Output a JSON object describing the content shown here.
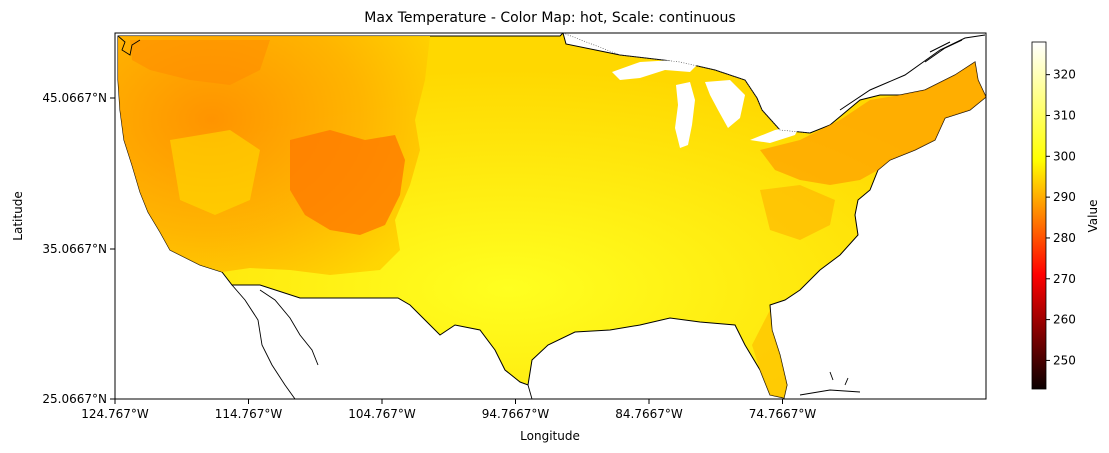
{
  "figure": {
    "title": "Max Temperature - Color Map: hot, Scale: continuous",
    "xlabel": "Longitude",
    "ylabel": "Latitude",
    "colorbar_label": "Value",
    "colormap": "hot"
  },
  "chart_data": {
    "type": "heatmap",
    "title": "Max Temperature - Color Map: hot, Scale: continuous",
    "xlabel": "Longitude",
    "ylabel": "Latitude",
    "x_ticks": [
      "124.767°W",
      "114.767°W",
      "104.767°W",
      "94.7667°W",
      "84.7667°W",
      "74.7667°W"
    ],
    "y_ticks": [
      "45.0667°N",
      "35.0667°N",
      "25.0667°N"
    ],
    "colorbar": {
      "label": "Value",
      "ticks": [
        "250",
        "260",
        "270",
        "280",
        "290",
        "300",
        "310",
        "320"
      ],
      "range": [
        243,
        328
      ],
      "cmap": "hot"
    },
    "grid": false
  },
  "colors": {
    "ocean": "#ffffff",
    "coast": "#000000"
  }
}
